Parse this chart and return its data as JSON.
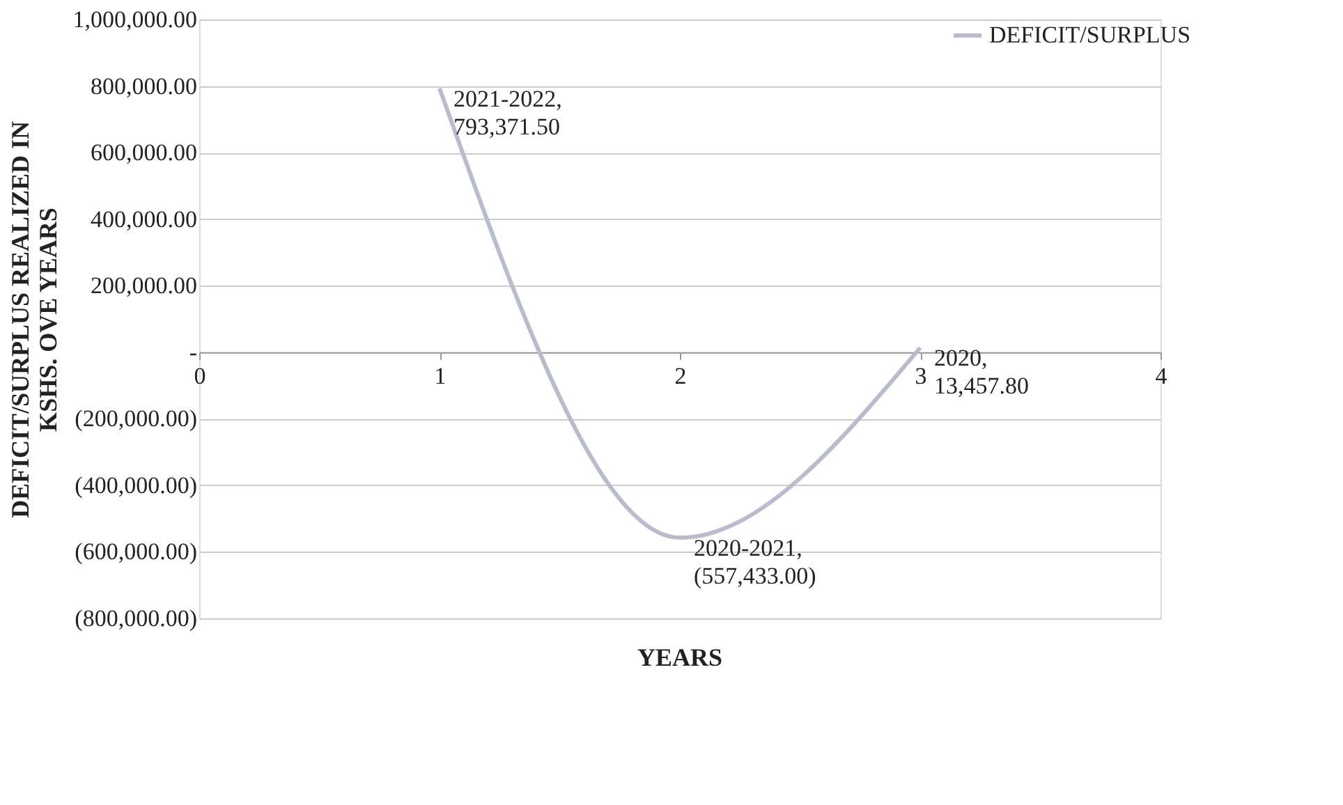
{
  "chart_data": {
    "type": "line",
    "xlabel": "YEARS",
    "ylabel": "DEFICIT/SURPLUS REALIZED IN\nKSHS. OVE YEARS",
    "x": [
      1,
      2,
      3
    ],
    "series": [
      {
        "name": "DEFICIT/SURPLUS",
        "color": "#b8bccb",
        "values": [
          793371.5,
          -557433,
          13457.8
        ]
      }
    ],
    "xlim": [
      0,
      4
    ],
    "xticks": [
      0,
      1,
      2,
      3,
      4
    ],
    "ylim": [
      -800000,
      1000000
    ],
    "yticks": [
      {
        "value": -800000,
        "label": "(800,000.00)"
      },
      {
        "value": -600000,
        "label": "(600,000.00)"
      },
      {
        "value": -400000,
        "label": "(400,000.00)"
      },
      {
        "value": -200000,
        "label": "(200,000.00)"
      },
      {
        "value": 0,
        "label": "-"
      },
      {
        "value": 200000,
        "label": "200,000.00"
      },
      {
        "value": 400000,
        "label": "400,000.00"
      },
      {
        "value": 600000,
        "label": "600,000.00"
      },
      {
        "value": 800000,
        "label": "800,000.00"
      },
      {
        "value": 1000000,
        "label": "1,000,000.00"
      }
    ],
    "annotations": [
      {
        "text": "2021-2022,\n793,371.50",
        "x": 1,
        "y": 793371.5
      },
      {
        "text": "2020-2021,\n(557,433.00)",
        "x": 2,
        "y": -557433
      },
      {
        "text": "2020,\n13,457.80",
        "x": 3,
        "y": 13457.8
      }
    ],
    "grid": "y",
    "legend": "right",
    "marker": "none",
    "line_style": "solid"
  }
}
